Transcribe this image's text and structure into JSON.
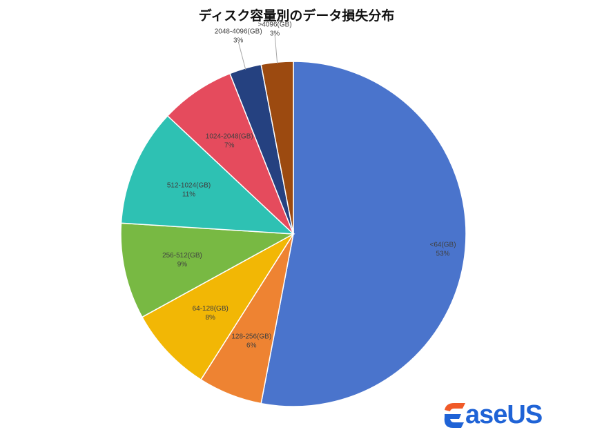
{
  "chart_data": {
    "type": "pie",
    "title": "ディスク容量別のデータ損失分布",
    "slices": [
      {
        "label": "<64(GB)",
        "value": 53,
        "value_label": "53%",
        "color": "#4a74cc"
      },
      {
        "label": "128-256(GB)",
        "value": 6,
        "value_label": "6%",
        "color": "#ee8332"
      },
      {
        "label": "64-128(GB)",
        "value": 8,
        "value_label": "8%",
        "color": "#f2b705"
      },
      {
        "label": "256-512(GB)",
        "value": 9,
        "value_label": "9%",
        "color": "#78b943"
      },
      {
        "label": "512-1024(GB)",
        "value": 11,
        "value_label": "11%",
        "color": "#2ec1b3"
      },
      {
        "label": "1024-2048(GB)",
        "value": 7,
        "value_label": "7%",
        "color": "#e54b5d"
      },
      {
        "label": "2048-4096(GB)",
        "value": 3,
        "value_label": "3%",
        "color": "#254180"
      },
      {
        "label": ">4096(GB)",
        "value": 3,
        "value_label": "3%",
        "color": "#9c4a10"
      }
    ]
  },
  "logo": {
    "text": "aseUS",
    "mark_colors": [
      "#f05a28",
      "#1f63d6"
    ]
  }
}
